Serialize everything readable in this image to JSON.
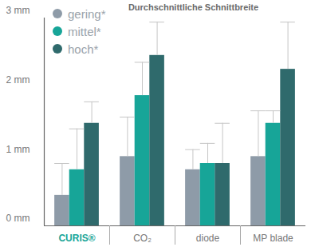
{
  "chart_data": {
    "type": "bar",
    "title": "Durchschnittliche Schnittbreite",
    "categories": [
      "CURIS®",
      "CO₂",
      "diode",
      "MP blade"
    ],
    "series": [
      {
        "name": "gering*",
        "color": "#8e9ba8",
        "values": [
          0.44,
          1.0,
          0.81,
          1.0
        ],
        "errors": [
          0.46,
          0.57,
          0.29,
          0.66
        ]
      },
      {
        "name": "mittel*",
        "color": "#17a598",
        "values": [
          0.81,
          1.88,
          0.9,
          1.48
        ],
        "errors": [
          0.59,
          0.48,
          0.29,
          0.18
        ]
      },
      {
        "name": "hoch*",
        "color": "#2f6a6c",
        "values": [
          1.48,
          2.46,
          0.9,
          2.26
        ],
        "errors": [
          0.31,
          0.48,
          0.58,
          0.68
        ]
      }
    ],
    "ylim": [
      0,
      3
    ],
    "yticks": [
      {
        "value": 0,
        "label": "0 mm"
      },
      {
        "value": 1,
        "label": "1 mm"
      },
      {
        "value": 2,
        "label": "2 mm"
      },
      {
        "value": 3,
        "label": "3 mm"
      }
    ],
    "grid": false,
    "legend": "upper left"
  }
}
